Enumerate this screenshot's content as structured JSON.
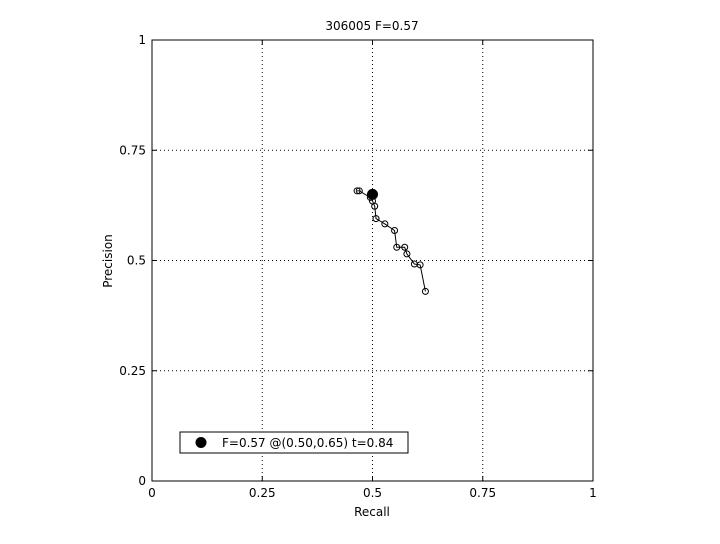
{
  "chart_data": {
    "type": "line",
    "title": "306005 F=0.57",
    "xlabel": "Recall",
    "ylabel": "Precision",
    "xlim": [
      0,
      1
    ],
    "ylim": [
      0,
      1
    ],
    "grid": true,
    "grid_style": "dotted",
    "x_ticks": [
      "0",
      "0.25",
      "0.5",
      "0.75",
      "1"
    ],
    "y_ticks": [
      "0",
      "0.25",
      "0.5",
      "0.75",
      "1"
    ],
    "series": [
      {
        "marker": "open-circle",
        "color": "#000000",
        "points": [
          {
            "x": 0.465,
            "y": 0.658
          },
          {
            "x": 0.47,
            "y": 0.658
          },
          {
            "x": 0.495,
            "y": 0.643
          },
          {
            "x": 0.5,
            "y": 0.635
          },
          {
            "x": 0.505,
            "y": 0.623
          },
          {
            "x": 0.508,
            "y": 0.595
          },
          {
            "x": 0.528,
            "y": 0.583
          },
          {
            "x": 0.55,
            "y": 0.568
          },
          {
            "x": 0.555,
            "y": 0.53
          },
          {
            "x": 0.573,
            "y": 0.53
          },
          {
            "x": 0.578,
            "y": 0.515
          },
          {
            "x": 0.595,
            "y": 0.492
          },
          {
            "x": 0.608,
            "y": 0.49
          },
          {
            "x": 0.62,
            "y": 0.43
          }
        ]
      }
    ],
    "best_point": {
      "x": 0.5,
      "y": 0.65,
      "marker": "filled-circle",
      "color": "#000000"
    },
    "legend": {
      "position": "bottom-left",
      "label": "F=0.57 @(0.50,0.65) t=0.84"
    }
  }
}
